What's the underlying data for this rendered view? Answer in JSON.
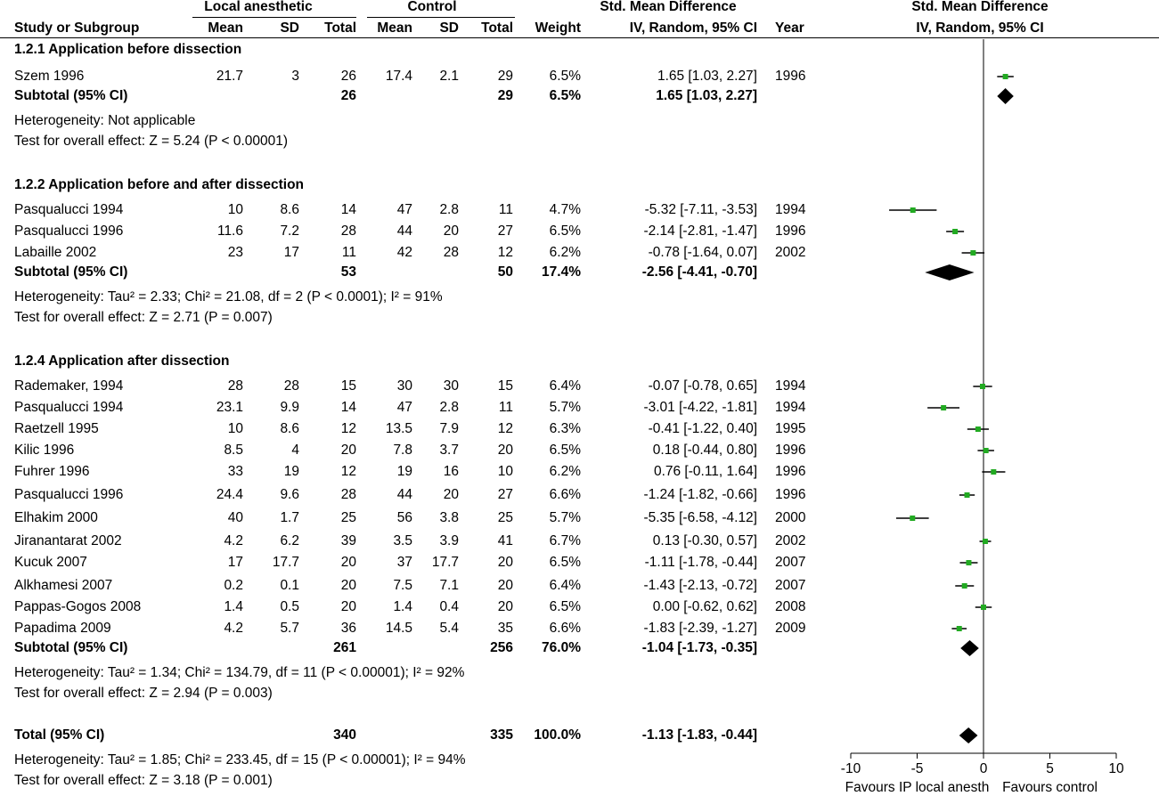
{
  "header": {
    "group_local": "Local anesthetic",
    "group_control": "Control",
    "smd_left": "Std. Mean Difference",
    "smd_right": "Std. Mean Difference",
    "col_study": "Study or Subgroup",
    "col_mean1": "Mean",
    "col_sd1": "SD",
    "col_total1": "Total",
    "col_mean2": "Mean",
    "col_sd2": "SD",
    "col_total2": "Total",
    "col_weight": "Weight",
    "col_ci": "IV, Random, 95% CI",
    "col_year": "Year",
    "col_ci_right": "IV, Random, 95% CI"
  },
  "subgroups": [
    {
      "title": "1.2.1 Application before dissection",
      "studies": [
        {
          "name": "Szem 1996",
          "mean1": "21.7",
          "sd1": "3",
          "n1": "26",
          "mean2": "17.4",
          "sd2": "2.1",
          "n2": "29",
          "weight": "6.5%",
          "ci": "1.65 [1.03, 2.27]",
          "year": "1996"
        }
      ],
      "subtotal": {
        "label": "Subtotal (95% CI)",
        "n1": "26",
        "n2": "29",
        "weight": "6.5%",
        "ci": "1.65 [1.03, 2.27]"
      },
      "heterogeneity": "Heterogeneity: Not applicable",
      "overall": "Test for overall effect: Z = 5.24 (P < 0.00001)"
    },
    {
      "title": "1.2.2 Application before and after dissection",
      "studies": [
        {
          "name": "Pasqualucci 1994",
          "mean1": "10",
          "sd1": "8.6",
          "n1": "14",
          "mean2": "47",
          "sd2": "2.8",
          "n2": "11",
          "weight": "4.7%",
          "ci": "-5.32 [-7.11, -3.53]",
          "year": "1994"
        },
        {
          "name": "Pasqualucci 1996",
          "mean1": "11.6",
          "sd1": "7.2",
          "n1": "28",
          "mean2": "44",
          "sd2": "20",
          "n2": "27",
          "weight": "6.5%",
          "ci": "-2.14 [-2.81, -1.47]",
          "year": "1996"
        },
        {
          "name": "Labaille 2002",
          "mean1": "23",
          "sd1": "17",
          "n1": "11",
          "mean2": "42",
          "sd2": "28",
          "n2": "12",
          "weight": "6.2%",
          "ci": "-0.78 [-1.64, 0.07]",
          "year": "2002"
        }
      ],
      "subtotal": {
        "label": "Subtotal (95% CI)",
        "n1": "53",
        "n2": "50",
        "weight": "17.4%",
        "ci": "-2.56 [-4.41, -0.70]"
      },
      "heterogeneity": "Heterogeneity: Tau² = 2.33; Chi² = 21.08, df = 2 (P < 0.0001); I² = 91%",
      "overall": "Test for overall effect: Z = 2.71 (P = 0.007)"
    },
    {
      "title": "1.2.4 Application after dissection",
      "studies": [
        {
          "name": "Rademaker, 1994",
          "mean1": "28",
          "sd1": "28",
          "n1": "15",
          "mean2": "30",
          "sd2": "30",
          "n2": "15",
          "weight": "6.4%",
          "ci": "-0.07 [-0.78, 0.65]",
          "year": "1994"
        },
        {
          "name": "Pasqualucci 1994",
          "mean1": "23.1",
          "sd1": "9.9",
          "n1": "14",
          "mean2": "47",
          "sd2": "2.8",
          "n2": "11",
          "weight": "5.7%",
          "ci": "-3.01 [-4.22, -1.81]",
          "year": "1994"
        },
        {
          "name": "Raetzell 1995",
          "mean1": "10",
          "sd1": "8.6",
          "n1": "12",
          "mean2": "13.5",
          "sd2": "7.9",
          "n2": "12",
          "weight": "6.3%",
          "ci": "-0.41 [-1.22, 0.40]",
          "year": "1995"
        },
        {
          "name": "Kilic 1996",
          "mean1": "8.5",
          "sd1": "4",
          "n1": "20",
          "mean2": "7.8",
          "sd2": "3.7",
          "n2": "20",
          "weight": "6.5%",
          "ci": "0.18 [-0.44, 0.80]",
          "year": "1996"
        },
        {
          "name": "Fuhrer 1996",
          "mean1": "33",
          "sd1": "19",
          "n1": "12",
          "mean2": "19",
          "sd2": "16",
          "n2": "10",
          "weight": "6.2%",
          "ci": "0.76 [-0.11, 1.64]",
          "year": "1996"
        },
        {
          "name": "Pasqualucci 1996",
          "mean1": "24.4",
          "sd1": "9.6",
          "n1": "28",
          "mean2": "44",
          "sd2": "20",
          "n2": "27",
          "weight": "6.6%",
          "ci": "-1.24 [-1.82, -0.66]",
          "year": "1996"
        },
        {
          "name": "Elhakim 2000",
          "mean1": "40",
          "sd1": "1.7",
          "n1": "25",
          "mean2": "56",
          "sd2": "3.8",
          "n2": "25",
          "weight": "5.7%",
          "ci": "-5.35 [-6.58, -4.12]",
          "year": "2000"
        },
        {
          "name": "Jiranantarat 2002",
          "mean1": "4.2",
          "sd1": "6.2",
          "n1": "39",
          "mean2": "3.5",
          "sd2": "3.9",
          "n2": "41",
          "weight": "6.7%",
          "ci": "0.13 [-0.30, 0.57]",
          "year": "2002"
        },
        {
          "name": "Kucuk 2007",
          "mean1": "17",
          "sd1": "17.7",
          "n1": "20",
          "mean2": "37",
          "sd2": "17.7",
          "n2": "20",
          "weight": "6.5%",
          "ci": "-1.11 [-1.78, -0.44]",
          "year": "2007"
        },
        {
          "name": "Alkhamesi 2007",
          "mean1": "0.2",
          "sd1": "0.1",
          "n1": "20",
          "mean2": "7.5",
          "sd2": "7.1",
          "n2": "20",
          "weight": "6.4%",
          "ci": "-1.43 [-2.13, -0.72]",
          "year": "2007"
        },
        {
          "name": "Pappas-Gogos 2008",
          "mean1": "1.4",
          "sd1": "0.5",
          "n1": "20",
          "mean2": "1.4",
          "sd2": "0.4",
          "n2": "20",
          "weight": "6.5%",
          "ci": "0.00 [-0.62, 0.62]",
          "year": "2008"
        },
        {
          "name": "Papadima 2009",
          "mean1": "4.2",
          "sd1": "5.7",
          "n1": "36",
          "mean2": "14.5",
          "sd2": "5.4",
          "n2": "35",
          "weight": "6.6%",
          "ci": "-1.83 [-2.39, -1.27]",
          "year": "2009"
        }
      ],
      "subtotal": {
        "label": "Subtotal (95% CI)",
        "n1": "261",
        "n2": "256",
        "weight": "76.0%",
        "ci": "-1.04 [-1.73, -0.35]"
      },
      "heterogeneity": "Heterogeneity: Tau² = 1.34; Chi² = 134.79, df = 11 (P < 0.00001); I² = 92%",
      "overall": "Test for overall effect: Z = 2.94 (P = 0.003)"
    }
  ],
  "total": {
    "label": "Total (95% CI)",
    "n1": "340",
    "n2": "335",
    "weight": "100.0%",
    "ci": "-1.13 [-1.83, -0.44]"
  },
  "total_heterogeneity": "Heterogeneity: Tau² = 1.85; Chi² = 233.45, df = 15 (P < 0.00001); I² = 94%",
  "total_overall": "Test for overall effect: Z = 3.18 (P = 0.001)",
  "favours_left": "Favours IP local anesth",
  "favours_right": "Favours control",
  "colors": {
    "point": "#22aa22",
    "line": "#000000",
    "diamond": "#000000"
  },
  "chart_data": {
    "type": "forest",
    "xlim": [
      -10,
      10
    ],
    "xticks": [
      -10,
      -5,
      0,
      5,
      10
    ],
    "tick_labels": [
      "-10",
      "-5",
      "0",
      "5",
      "10"
    ],
    "studies": [
      {
        "name": "Szem 1996",
        "est": 1.65,
        "lo": 1.03,
        "hi": 2.27
      },
      {
        "name": "Pasqualucci 1994",
        "est": -5.32,
        "lo": -7.11,
        "hi": -3.53
      },
      {
        "name": "Pasqualucci 1996",
        "est": -2.14,
        "lo": -2.81,
        "hi": -1.47
      },
      {
        "name": "Labaille 2002",
        "est": -0.78,
        "lo": -1.64,
        "hi": 0.07
      },
      {
        "name": "Rademaker, 1994",
        "est": -0.07,
        "lo": -0.78,
        "hi": 0.65
      },
      {
        "name": "Pasqualucci 1994",
        "est": -3.01,
        "lo": -4.22,
        "hi": -1.81
      },
      {
        "name": "Raetzell 1995",
        "est": -0.41,
        "lo": -1.22,
        "hi": 0.4
      },
      {
        "name": "Kilic 1996",
        "est": 0.18,
        "lo": -0.44,
        "hi": 0.8
      },
      {
        "name": "Fuhrer 1996",
        "est": 0.76,
        "lo": -0.11,
        "hi": 1.64
      },
      {
        "name": "Pasqualucci 1996",
        "est": -1.24,
        "lo": -1.82,
        "hi": -0.66
      },
      {
        "name": "Elhakim 2000",
        "est": -5.35,
        "lo": -6.58,
        "hi": -4.12
      },
      {
        "name": "Jiranantarat 2002",
        "est": 0.13,
        "lo": -0.3,
        "hi": 0.57
      },
      {
        "name": "Kucuk 2007",
        "est": -1.11,
        "lo": -1.78,
        "hi": -0.44
      },
      {
        "name": "Alkhamesi 2007",
        "est": -1.43,
        "lo": -2.13,
        "hi": -0.72
      },
      {
        "name": "Pappas-Gogos 2008",
        "est": 0.0,
        "lo": -0.62,
        "hi": 0.62
      },
      {
        "name": "Papadima 2009",
        "est": -1.83,
        "lo": -2.39,
        "hi": -1.27
      }
    ],
    "diamonds": [
      {
        "name": "Subtotal 1.2.1",
        "est": 1.65,
        "lo": 1.03,
        "hi": 2.27
      },
      {
        "name": "Subtotal 1.2.2",
        "est": -2.56,
        "lo": -4.41,
        "hi": -0.7
      },
      {
        "name": "Subtotal 1.2.4",
        "est": -1.04,
        "lo": -1.73,
        "hi": -0.35
      },
      {
        "name": "Total",
        "est": -1.13,
        "lo": -1.83,
        "hi": -0.44
      }
    ]
  }
}
